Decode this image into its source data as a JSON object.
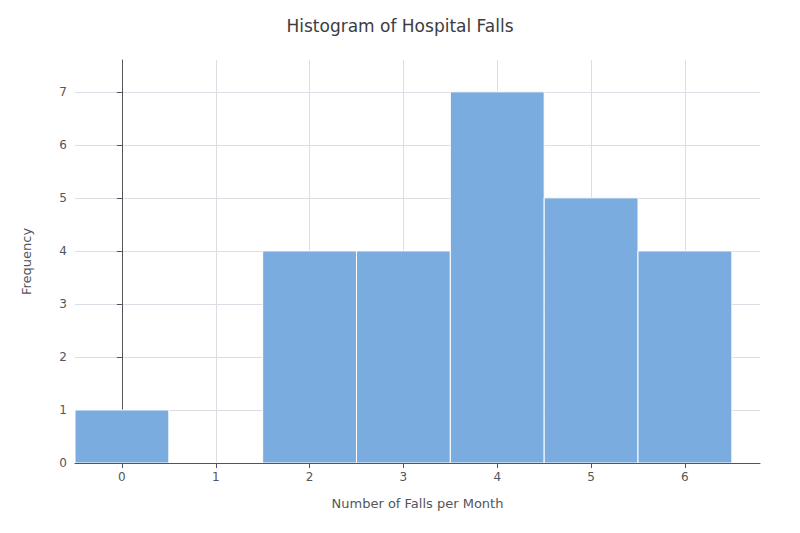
{
  "chart_data": {
    "type": "histogram",
    "title": "Histogram of Hospital Falls",
    "xlabel": "Number of Falls per Month",
    "ylabel": "Frequency",
    "bins": [
      -0.5,
      0.5,
      1.5,
      2.5,
      3.5,
      4.5,
      5.5,
      6.5
    ],
    "values": [
      1,
      0,
      4,
      4,
      7,
      5,
      4
    ],
    "color": "#7aace0",
    "xlim": [
      -0.5,
      6.8
    ],
    "ylim": [
      0,
      7.6
    ],
    "xticks": [
      0,
      1,
      2,
      3,
      4,
      5,
      6
    ],
    "yticks": [
      0,
      1,
      2,
      3,
      4,
      5,
      6,
      7
    ],
    "grid": true
  }
}
